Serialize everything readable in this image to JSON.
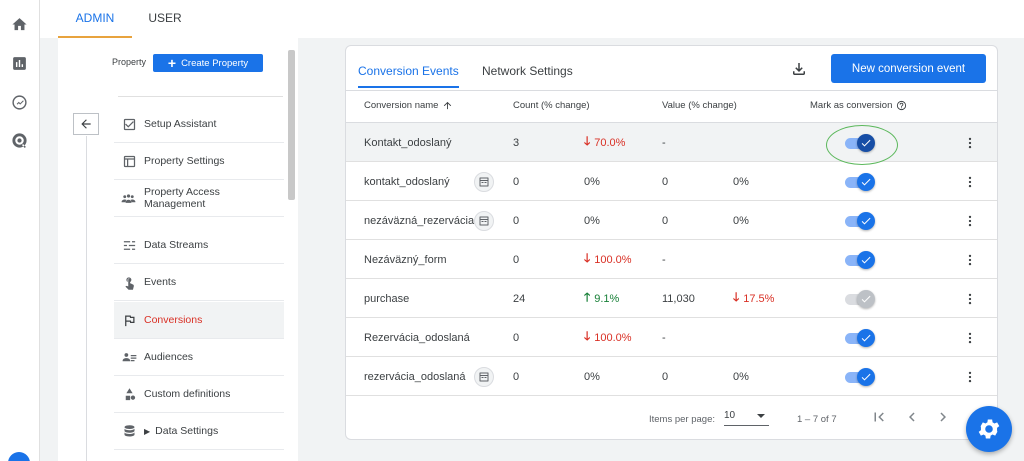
{
  "top_tabs": [
    {
      "label": "ADMIN",
      "active": true
    },
    {
      "label": "USER",
      "active": false
    }
  ],
  "rail_icons": [
    "home-icon",
    "reports-icon",
    "explore-icon",
    "advertising-icon"
  ],
  "property": {
    "label": "Property",
    "create_label": "Create Property"
  },
  "nav": [
    {
      "label": "Setup Assistant",
      "icon": "checkbox-icon",
      "active": false
    },
    {
      "label": "Property Settings",
      "icon": "settings-window-icon",
      "active": false
    },
    {
      "label": "Property Access Management",
      "icon": "people-icon",
      "active": false
    },
    {
      "label": "Data Streams",
      "icon": "streams-icon",
      "active": false
    },
    {
      "label": "Events",
      "icon": "touch-icon",
      "active": false
    },
    {
      "label": "Conversions",
      "icon": "flag-icon",
      "active": true
    },
    {
      "label": "Audiences",
      "icon": "audience-icon",
      "active": false
    },
    {
      "label": "Custom definitions",
      "icon": "shapes-icon",
      "active": false
    },
    {
      "label": "Data Settings",
      "icon": "database-icon",
      "active": false
    }
  ],
  "card": {
    "tabs": [
      {
        "label": "Conversion Events",
        "active": true
      },
      {
        "label": "Network Settings",
        "active": false
      }
    ],
    "new_button": "New conversion event",
    "headers": {
      "name": "Conversion name",
      "count": "Count (% change)",
      "value": "Value (% change)",
      "mark": "Mark as conversion"
    },
    "rows": [
      {
        "name": "Kontakt_odoslaný",
        "badge": false,
        "count": "3",
        "count_change": "70.0%",
        "count_dir": "down",
        "value": "-",
        "value_change": "",
        "value_dir": "",
        "toggle": "dark",
        "highlight": true
      },
      {
        "name": "kontakt_odoslaný",
        "badge": true,
        "count": "0",
        "count_change": "0%",
        "count_dir": "",
        "value": "0",
        "value_change": "0%",
        "value_dir": "",
        "toggle": "on",
        "highlight": false
      },
      {
        "name": "nezáväzná_rezervácia",
        "badge": true,
        "count": "0",
        "count_change": "0%",
        "count_dir": "",
        "value": "0",
        "value_change": "0%",
        "value_dir": "",
        "toggle": "on",
        "highlight": false
      },
      {
        "name": "Nezáväzný_form",
        "badge": false,
        "count": "0",
        "count_change": "100.0%",
        "count_dir": "down",
        "value": "-",
        "value_change": "",
        "value_dir": "",
        "toggle": "on",
        "highlight": false
      },
      {
        "name": "purchase",
        "badge": false,
        "count": "24",
        "count_change": "9.1%",
        "count_dir": "up",
        "value": "11,030",
        "value_change": "17.5%",
        "value_dir": "down",
        "toggle": "off",
        "highlight": false
      },
      {
        "name": "Rezervácia_odoslaná",
        "badge": false,
        "count": "0",
        "count_change": "100.0%",
        "count_dir": "down",
        "value": "-",
        "value_change": "",
        "value_dir": "",
        "toggle": "on",
        "highlight": false
      },
      {
        "name": "rezervácia_odoslaná",
        "badge": true,
        "count": "0",
        "count_change": "0%",
        "count_dir": "",
        "value": "0",
        "value_change": "0%",
        "value_dir": "",
        "toggle": "on",
        "highlight": false
      }
    ],
    "footer": {
      "items_per_page_label": "Items per page:",
      "items_per_page": "10",
      "range": "1 – 7 of 7"
    }
  },
  "colors": {
    "accent": "#1a73e8",
    "negative": "#d93025",
    "positive": "#188038",
    "tab_underline": "#e8a33d",
    "highlight_circle": "#5cb85c"
  }
}
